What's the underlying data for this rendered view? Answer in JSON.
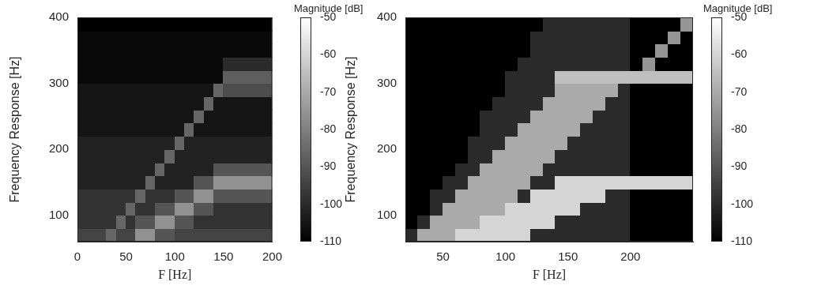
{
  "chart_data": [
    {
      "type": "heatmap",
      "x_label": "F [Hz]",
      "y_label": "Frequency Response [Hz]",
      "xlim": [
        0,
        200
      ],
      "ylim": [
        60,
        400
      ],
      "xticks": [
        0,
        50,
        100,
        150,
        200
      ],
      "yticks": [
        100,
        200,
        300,
        400
      ],
      "grid": false,
      "x": [
        5,
        15,
        25,
        35,
        45,
        55,
        65,
        75,
        85,
        95,
        105,
        115,
        125,
        135,
        145,
        155,
        165,
        175,
        185,
        195
      ],
      "y": [
        70,
        90,
        110,
        130,
        150,
        170,
        190,
        210,
        230,
        250,
        270,
        290,
        310,
        330,
        350,
        370,
        390
      ],
      "z": [
        [
          -94,
          -94,
          -94,
          -86,
          -94,
          -94,
          -76,
          -76,
          -90,
          -90,
          -94,
          -94,
          -94,
          -94,
          -94,
          -94,
          -94,
          -94,
          -94,
          -94
        ],
        [
          -98,
          -98,
          -98,
          -98,
          -86,
          -98,
          -90,
          -90,
          -76,
          -76,
          -90,
          -90,
          -98,
          -98,
          -98,
          -98,
          -98,
          -98,
          -98,
          -98
        ],
        [
          -98,
          -98,
          -98,
          -98,
          -98,
          -86,
          -98,
          -98,
          -90,
          -90,
          -76,
          -76,
          -90,
          -90,
          -98,
          -98,
          -98,
          -98,
          -98,
          -98
        ],
        [
          -98,
          -98,
          -98,
          -98,
          -98,
          -98,
          -86,
          -98,
          -98,
          -98,
          -90,
          -90,
          -76,
          -76,
          -90,
          -90,
          -90,
          -90,
          -90,
          -90
        ],
        [
          -102,
          -102,
          -102,
          -102,
          -102,
          -102,
          -102,
          -86,
          -102,
          -102,
          -102,
          -102,
          -90,
          -90,
          -76,
          -76,
          -76,
          -76,
          -76,
          -76
        ],
        [
          -102,
          -102,
          -102,
          -102,
          -102,
          -102,
          -102,
          -102,
          -86,
          -102,
          -102,
          -102,
          -102,
          -102,
          -90,
          -90,
          -90,
          -90,
          -90,
          -90
        ],
        [
          -102,
          -102,
          -102,
          -102,
          -102,
          -102,
          -102,
          -102,
          -102,
          -86,
          -102,
          -102,
          -102,
          -102,
          -102,
          -102,
          -102,
          -102,
          -102,
          -102
        ],
        [
          -102,
          -102,
          -102,
          -102,
          -102,
          -102,
          -102,
          -102,
          -102,
          -102,
          -86,
          -102,
          -102,
          -102,
          -102,
          -102,
          -102,
          -102,
          -102,
          -102
        ],
        [
          -105,
          -105,
          -105,
          -105,
          -105,
          -105,
          -105,
          -105,
          -105,
          -105,
          -105,
          -86,
          -105,
          -105,
          -105,
          -105,
          -105,
          -105,
          -105,
          -105
        ],
        [
          -105,
          -105,
          -105,
          -105,
          -105,
          -105,
          -105,
          -105,
          -105,
          -105,
          -105,
          -105,
          -86,
          -105,
          -105,
          -105,
          -105,
          -105,
          -105,
          -105
        ],
        [
          -105,
          -105,
          -105,
          -105,
          -105,
          -105,
          -105,
          -105,
          -105,
          -105,
          -105,
          -105,
          -105,
          -86,
          -105,
          -105,
          -105,
          -105,
          -105,
          -105
        ],
        [
          -105,
          -105,
          -105,
          -105,
          -105,
          -105,
          -105,
          -105,
          -105,
          -105,
          -105,
          -105,
          -105,
          -105,
          -86,
          -92,
          -92,
          -92,
          -92,
          -92
        ],
        [
          -108,
          -108,
          -108,
          -108,
          -108,
          -108,
          -108,
          -108,
          -108,
          -108,
          -108,
          -108,
          -108,
          -108,
          -108,
          -88,
          -88,
          -88,
          -88,
          -88
        ],
        [
          -108,
          -108,
          -108,
          -108,
          -108,
          -108,
          -108,
          -108,
          -108,
          -108,
          -108,
          -108,
          -108,
          -108,
          -108,
          -100,
          -100,
          -100,
          -100,
          -100
        ],
        [
          -108,
          -108,
          -108,
          -108,
          -108,
          -108,
          -108,
          -108,
          -108,
          -108,
          -108,
          -108,
          -108,
          -108,
          -108,
          -108,
          -108,
          -108,
          -108,
          -108
        ],
        [
          -108,
          -108,
          -108,
          -108,
          -108,
          -108,
          -108,
          -108,
          -108,
          -108,
          -108,
          -108,
          -108,
          -108,
          -108,
          -108,
          -108,
          -108,
          -108,
          -108
        ],
        [
          -110,
          -110,
          -110,
          -110,
          -110,
          -110,
          -110,
          -110,
          -110,
          -110,
          -110,
          -110,
          -110,
          -110,
          -110,
          -110,
          -110,
          -110,
          -110,
          -110
        ]
      ],
      "colorbar": {
        "label": "Magnitude [dB]",
        "range": [
          -110,
          -50
        ],
        "ticks": [
          -110,
          -100,
          -90,
          -80,
          -70,
          -60,
          -50
        ]
      }
    },
    {
      "type": "heatmap",
      "x_label": "F [Hz]",
      "y_label": "Frequency Response [Hz]",
      "xlim": [
        20,
        250
      ],
      "ylim": [
        60,
        400
      ],
      "xticks": [
        50,
        100,
        150,
        200
      ],
      "yticks": [
        100,
        200,
        300,
        400
      ],
      "grid": false,
      "x": [
        25,
        35,
        45,
        55,
        65,
        75,
        85,
        95,
        105,
        115,
        125,
        135,
        145,
        155,
        165,
        175,
        185,
        195,
        205,
        215,
        225,
        235,
        245
      ],
      "y": [
        70,
        90,
        110,
        130,
        150,
        170,
        190,
        210,
        230,
        250,
        270,
        290,
        310,
        330,
        350,
        370,
        390
      ],
      "z": [
        [
          -100,
          -70,
          -70,
          -70,
          -60,
          -60,
          -60,
          -60,
          -60,
          -60,
          -100,
          -100,
          -100,
          -100,
          -100,
          -100,
          -100,
          -100,
          -110,
          -110,
          -110,
          -110,
          -110
        ],
        [
          -110,
          -100,
          -70,
          -70,
          -70,
          -70,
          -60,
          -60,
          -60,
          -60,
          -60,
          -60,
          -100,
          -100,
          -100,
          -100,
          -100,
          -100,
          -110,
          -110,
          -110,
          -110,
          -110
        ],
        [
          -110,
          -110,
          -100,
          -70,
          -70,
          -70,
          -70,
          -70,
          -60,
          -60,
          -60,
          -60,
          -60,
          -60,
          -100,
          -100,
          -100,
          -100,
          -110,
          -110,
          -110,
          -110,
          -110
        ],
        [
          -110,
          -110,
          -100,
          -100,
          -70,
          -70,
          -70,
          -70,
          -70,
          -100,
          -60,
          -60,
          -60,
          -60,
          -60,
          -60,
          -100,
          -100,
          -110,
          -110,
          -110,
          -110,
          -110
        ],
        [
          -110,
          -110,
          -110,
          -100,
          -100,
          -70,
          -70,
          -70,
          -70,
          -70,
          -100,
          -100,
          -60,
          -60,
          -60,
          -60,
          -60,
          -60,
          -60,
          -60,
          -60,
          -60,
          -60
        ],
        [
          -110,
          -110,
          -110,
          -110,
          -100,
          -100,
          -70,
          -70,
          -70,
          -70,
          -70,
          -100,
          -100,
          -100,
          -100,
          -100,
          -100,
          -100,
          -110,
          -110,
          -110,
          -110,
          -110
        ],
        [
          -110,
          -110,
          -110,
          -110,
          -110,
          -100,
          -100,
          -70,
          -70,
          -70,
          -70,
          -70,
          -100,
          -100,
          -100,
          -100,
          -100,
          -100,
          -110,
          -110,
          -110,
          -110,
          -110
        ],
        [
          -110,
          -110,
          -110,
          -110,
          -110,
          -100,
          -100,
          -100,
          -70,
          -70,
          -70,
          -70,
          -70,
          -100,
          -100,
          -100,
          -100,
          -100,
          -110,
          -110,
          -110,
          -110,
          -110
        ],
        [
          -110,
          -110,
          -110,
          -110,
          -110,
          -110,
          -100,
          -100,
          -100,
          -70,
          -70,
          -70,
          -70,
          -70,
          -100,
          -100,
          -100,
          -100,
          -110,
          -110,
          -110,
          -110,
          -110
        ],
        [
          -110,
          -110,
          -110,
          -110,
          -110,
          -110,
          -100,
          -100,
          -100,
          -100,
          -70,
          -70,
          -70,
          -70,
          -70,
          -100,
          -100,
          -100,
          -110,
          -110,
          -110,
          -110,
          -110
        ],
        [
          -110,
          -110,
          -110,
          -110,
          -110,
          -110,
          -110,
          -100,
          -100,
          -100,
          -100,
          -70,
          -70,
          -70,
          -70,
          -70,
          -100,
          -100,
          -110,
          -110,
          -110,
          -110,
          -110
        ],
        [
          -110,
          -110,
          -110,
          -110,
          -110,
          -110,
          -110,
          -110,
          -100,
          -100,
          -100,
          -100,
          -70,
          -70,
          -70,
          -70,
          -70,
          -100,
          -110,
          -110,
          -110,
          -110,
          -110
        ],
        [
          -110,
          -110,
          -110,
          -110,
          -110,
          -110,
          -110,
          -110,
          -100,
          -100,
          -100,
          -100,
          -65,
          -65,
          -65,
          -65,
          -65,
          -65,
          -65,
          -65,
          -65,
          -65,
          -65
        ],
        [
          -110,
          -110,
          -110,
          -110,
          -110,
          -110,
          -110,
          -110,
          -110,
          -100,
          -100,
          -100,
          -100,
          -100,
          -100,
          -100,
          -100,
          -100,
          -110,
          -75,
          -110,
          -110,
          -110
        ],
        [
          -110,
          -110,
          -110,
          -110,
          -110,
          -110,
          -110,
          -110,
          -110,
          -110,
          -100,
          -100,
          -100,
          -100,
          -100,
          -100,
          -100,
          -100,
          -110,
          -110,
          -75,
          -110,
          -110
        ],
        [
          -110,
          -110,
          -110,
          -110,
          -110,
          -110,
          -110,
          -110,
          -110,
          -110,
          -100,
          -100,
          -100,
          -100,
          -100,
          -100,
          -100,
          -100,
          -110,
          -110,
          -110,
          -75,
          -110
        ],
        [
          -110,
          -110,
          -110,
          -110,
          -110,
          -110,
          -110,
          -110,
          -110,
          -110,
          -110,
          -100,
          -100,
          -100,
          -100,
          -100,
          -100,
          -100,
          -110,
          -110,
          -110,
          -110,
          -75
        ]
      ],
      "colorbar": {
        "label": "Magnitude [dB]",
        "range": [
          -110,
          -50
        ],
        "ticks": [
          -110,
          -100,
          -90,
          -80,
          -70,
          -60,
          -50
        ]
      }
    }
  ]
}
